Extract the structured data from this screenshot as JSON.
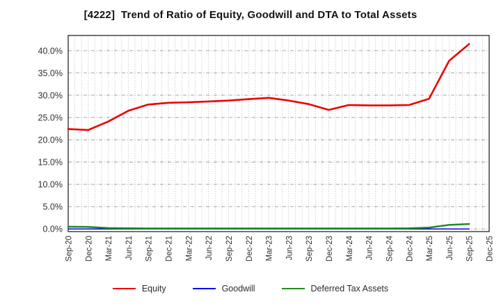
{
  "chart_data": {
    "type": "line",
    "title": "[4222]  Trend of Ratio of Equity, Goodwill and DTA to Total Assets",
    "categories": [
      "Sep-20",
      "Dec-20",
      "Mar-21",
      "Jun-21",
      "Sep-21",
      "Dec-21",
      "Mar-22",
      "Jun-22",
      "Sep-22",
      "Dec-22",
      "Mar-23",
      "Jun-23",
      "Sep-23",
      "Dec-23",
      "Mar-24",
      "Jun-24",
      "Sep-24",
      "Dec-24",
      "Mar-25",
      "Jun-25",
      "Sep-25",
      "Dec-25"
    ],
    "series": [
      {
        "name": "Equity",
        "color": "#ee0000",
        "values": [
          22.4,
          22.2,
          24.1,
          26.5,
          27.9,
          28.3,
          28.4,
          28.6,
          28.8,
          29.1,
          29.4,
          28.8,
          28.0,
          26.7,
          27.8,
          27.7,
          27.7,
          27.8,
          29.2,
          37.7,
          41.5,
          null
        ]
      },
      {
        "name": "Goodwill",
        "color": "#0000ee",
        "values": [
          0.0,
          0.0,
          0.0,
          0.0,
          0.0,
          0.0,
          0.0,
          0.0,
          0.0,
          0.0,
          0.0,
          0.0,
          0.0,
          0.0,
          0.0,
          0.0,
          0.0,
          0.0,
          0.0,
          0.0,
          0.0,
          null
        ]
      },
      {
        "name": "Deferred Tax Assets",
        "color": "#228b22",
        "values": [
          0.5,
          0.45,
          0.2,
          0.15,
          0.1,
          0.1,
          0.1,
          0.1,
          0.1,
          0.1,
          0.1,
          0.1,
          0.1,
          0.1,
          0.1,
          0.1,
          0.1,
          0.15,
          0.3,
          0.9,
          1.1,
          null
        ]
      }
    ],
    "y_ticks": [
      {
        "value": 0,
        "label": "0.0%"
      },
      {
        "value": 5,
        "label": "5.0%"
      },
      {
        "value": 10,
        "label": "10.0%"
      },
      {
        "value": 15,
        "label": "15.0%"
      },
      {
        "value": 20,
        "label": "20.0%"
      },
      {
        "value": 25,
        "label": "25.0%"
      },
      {
        "value": 30,
        "label": "30.0%"
      },
      {
        "value": 35,
        "label": "35.0%"
      },
      {
        "value": 40,
        "label": "40.0%"
      }
    ],
    "ylim": [
      -0.6,
      43.4
    ],
    "grid": true,
    "legend_position": "bottom",
    "colors": {
      "grid_vertical": "#b5b5b5",
      "grid_horizontal": "#9a9a9a",
      "plot_border": "#262626",
      "tick_label": "#303030",
      "title": "#111111"
    }
  }
}
